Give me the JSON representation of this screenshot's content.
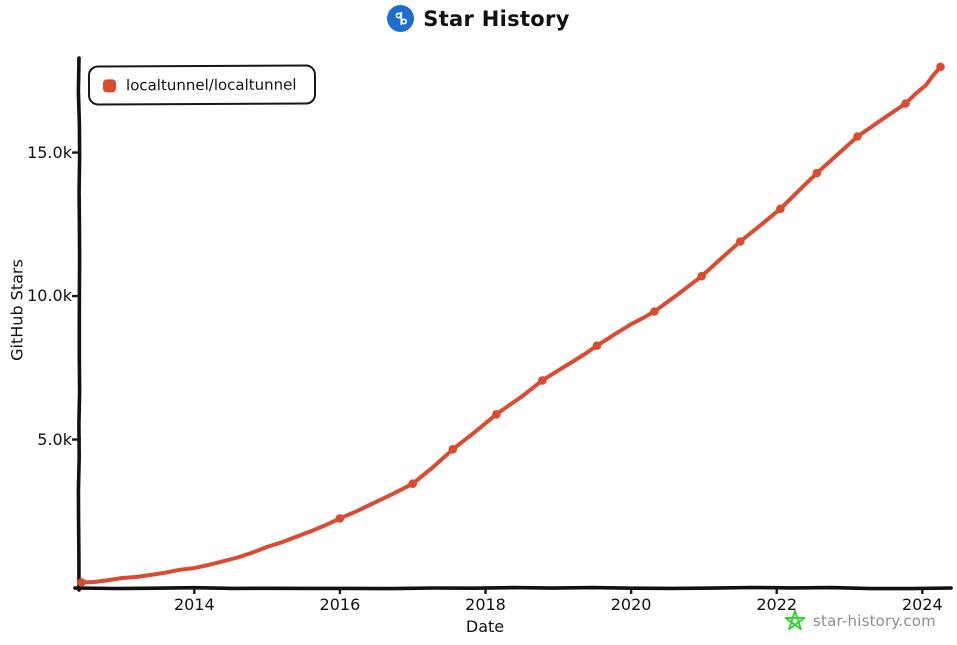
{
  "header": {
    "title": "Star History",
    "logo_icon": "star-history-logo",
    "logo_color": "#1d6ecd"
  },
  "legend": {
    "items": [
      {
        "label": "localtunnel/localtunnel",
        "color": "#db4b32"
      }
    ]
  },
  "watermark": {
    "label": "star-history.com",
    "star_color": "#2fd32f",
    "text_color": "#8e8e8e"
  },
  "chart_data": {
    "type": "line",
    "title": "Star History",
    "xlabel": "Date",
    "ylabel": "GitHub Stars",
    "xlim": [
      2012.43,
      2024.38
    ],
    "ylim": [
      0,
      18400
    ],
    "grid": false,
    "legend_position": "top-left",
    "style": "hand-drawn (xkcd)",
    "x_ticks": [
      {
        "value": 2014,
        "label": "2014"
      },
      {
        "value": 2016,
        "label": "2016"
      },
      {
        "value": 2018,
        "label": "2018"
      },
      {
        "value": 2020,
        "label": "2020"
      },
      {
        "value": 2022,
        "label": "2022"
      },
      {
        "value": 2024,
        "label": "2024"
      }
    ],
    "y_ticks": [
      {
        "value": 5000,
        "label": "5.0k"
      },
      {
        "value": 10000,
        "label": "10.0k"
      },
      {
        "value": 15000,
        "label": "15.0k"
      }
    ],
    "series": [
      {
        "name": "localtunnel/localtunnel",
        "color": "#db4b32",
        "points": [
          [
            2012.45,
            20
          ],
          [
            2012.8,
            90
          ],
          [
            2013.2,
            210
          ],
          [
            2013.6,
            360
          ],
          [
            2014.0,
            520
          ],
          [
            2014.4,
            760
          ],
          [
            2014.8,
            1060
          ],
          [
            2015.2,
            1420
          ],
          [
            2015.6,
            1800
          ],
          [
            2016.0,
            2250
          ],
          [
            2016.5,
            2830
          ],
          [
            2017.0,
            3460
          ],
          [
            2017.55,
            4660
          ],
          [
            2018.15,
            5880
          ],
          [
            2018.5,
            6500
          ],
          [
            2018.78,
            7060
          ],
          [
            2019.2,
            7720
          ],
          [
            2019.53,
            8270
          ],
          [
            2020.0,
            9020
          ],
          [
            2020.32,
            9460
          ],
          [
            2020.97,
            10690
          ],
          [
            2021.5,
            11900
          ],
          [
            2022.05,
            13040
          ],
          [
            2022.55,
            14280
          ],
          [
            2023.11,
            15560
          ],
          [
            2023.77,
            16710
          ],
          [
            2024.05,
            17350
          ],
          [
            2024.25,
            17990
          ]
        ],
        "markers": [
          [
            2012.45,
            20
          ],
          [
            2016.0,
            2250
          ],
          [
            2017.0,
            3460
          ],
          [
            2017.55,
            4660
          ],
          [
            2018.15,
            5880
          ],
          [
            2018.78,
            7060
          ],
          [
            2019.53,
            8270
          ],
          [
            2020.32,
            9460
          ],
          [
            2020.97,
            10690
          ],
          [
            2021.5,
            11900
          ],
          [
            2022.05,
            13040
          ],
          [
            2022.55,
            14280
          ],
          [
            2023.11,
            15560
          ],
          [
            2023.77,
            16710
          ],
          [
            2024.25,
            17990
          ]
        ]
      }
    ]
  }
}
